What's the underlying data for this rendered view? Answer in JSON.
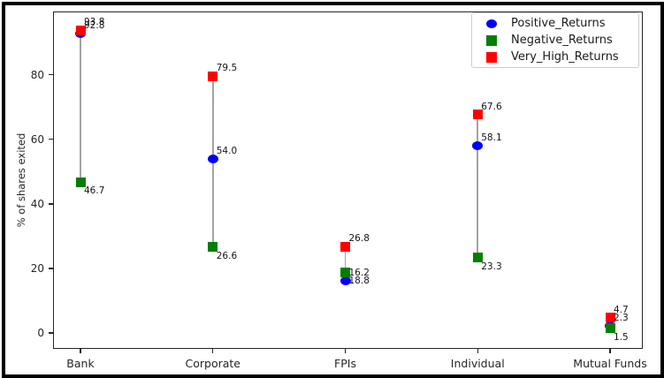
{
  "chart_data": {
    "type": "scatter",
    "title": "",
    "xlabel": "",
    "ylabel": "% of shares exited",
    "categories": [
      "Bank",
      "Corporate",
      "FPIs",
      "Individual",
      "Mutual Funds"
    ],
    "y_ticks": [
      0,
      20,
      40,
      60,
      80
    ],
    "ylim": [
      -4.9,
      99.6
    ],
    "grid": false,
    "legend_position": "upper right",
    "range_lines": {
      "show": true,
      "color": "#a3a3a3"
    },
    "series": [
      {
        "name": "Positive_Returns",
        "marker": "circle",
        "color": "#0000ff",
        "label_side": "above",
        "values": [
          92.8,
          54.0,
          16.2,
          58.1,
          2.3
        ],
        "labels": [
          "92.8",
          "54.0",
          "16.2",
          "58.1",
          "2.3"
        ]
      },
      {
        "name": "Negative_Returns",
        "marker": "square",
        "color": "#007f00",
        "label_side": "below",
        "values": [
          46.7,
          26.6,
          18.8,
          23.3,
          1.5
        ],
        "labels": [
          "46.7",
          "26.6",
          "18.8",
          "23.3",
          "1.5"
        ]
      },
      {
        "name": "Very_High_Returns",
        "marker": "square",
        "color": "#ff0000",
        "label_side": "above",
        "values": [
          93.8,
          79.5,
          26.8,
          67.6,
          4.7
        ],
        "labels": [
          "93.8",
          "79.5",
          "26.8",
          "67.6",
          "4.7"
        ]
      }
    ]
  }
}
